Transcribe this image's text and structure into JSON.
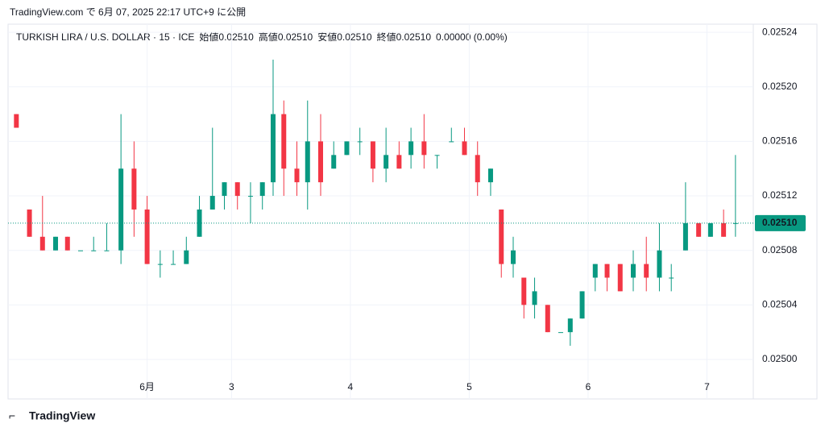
{
  "header": {
    "published": "TradingView.com で 6月 07, 2025 22:17 UTC+9 に公開"
  },
  "legend": {
    "symbol": "TURKISH LIRA / U.S. DOLLAR · 15 · ICE",
    "ohlc": [
      {
        "label": "始値",
        "value": "0.02510"
      },
      {
        "label": "高値",
        "value": "0.02510"
      },
      {
        "label": "安値",
        "value": "0.02510"
      },
      {
        "label": "終値",
        "value": "0.02510"
      }
    ],
    "change": "0.00000 (0.00%)"
  },
  "footer": {
    "brand": "TradingView"
  },
  "chart_data": {
    "type": "candlestick",
    "up_color": "#089981",
    "down_color": "#f23645",
    "grid": true,
    "xlim": [
      1.12,
      7.39
    ],
    "ylim": [
      0.024971,
      0.025246
    ],
    "xticks": [
      {
        "value": 2.29,
        "label": "6月"
      },
      3,
      4,
      5,
      6,
      7
    ],
    "yticks": [
      {
        "value": 0.025,
        "label": "0.02500"
      },
      {
        "value": 0.02504,
        "label": "0.02504"
      },
      {
        "value": 0.02508,
        "label": "0.02508"
      },
      {
        "value": 0.02512,
        "label": "0.02512"
      },
      {
        "value": 0.02516,
        "label": "0.02516"
      },
      {
        "value": 0.0252,
        "label": "0.02520"
      },
      {
        "value": 0.02524,
        "label": "0.02524"
      }
    ],
    "last_price": {
      "value": 0.0251,
      "label": "0.02510"
    },
    "x": [
      1.19,
      1.3,
      1.41,
      1.52,
      1.62,
      1.73,
      1.84,
      1.95,
      2.07,
      2.18,
      2.29,
      2.4,
      2.51,
      2.62,
      2.73,
      2.84,
      2.94,
      3.05,
      3.16,
      3.26,
      3.35,
      3.44,
      3.55,
      3.64,
      3.75,
      3.86,
      3.97,
      4.08,
      4.19,
      4.3,
      4.41,
      4.51,
      4.62,
      4.73,
      4.85,
      4.96,
      5.07,
      5.18,
      5.27,
      5.37,
      5.46,
      5.55,
      5.66,
      5.77,
      5.85,
      5.95,
      6.06,
      6.16,
      6.27,
      6.38,
      6.49,
      6.6,
      6.7,
      6.82,
      6.93,
      7.03,
      7.14,
      7.24
    ],
    "open": [
      0.02518,
      0.02511,
      0.02509,
      0.02508,
      0.02509,
      0.02508,
      0.02508,
      0.02508,
      0.02508,
      0.02514,
      0.02511,
      0.02507,
      0.02507,
      0.02507,
      0.02509,
      0.02511,
      0.02512,
      0.02513,
      0.02512,
      0.02512,
      0.02513,
      0.02518,
      0.02514,
      0.02513,
      0.02516,
      0.02514,
      0.02515,
      0.02516,
      0.02516,
      0.02514,
      0.02515,
      0.02515,
      0.02516,
      0.02515,
      0.02516,
      0.02516,
      0.02515,
      0.02513,
      0.02511,
      0.02507,
      0.02506,
      0.02504,
      0.02504,
      0.02502,
      0.02502,
      0.02503,
      0.02506,
      0.02507,
      0.02507,
      0.02506,
      0.02507,
      0.02506,
      0.02506,
      0.02508,
      0.0251,
      0.02509,
      0.0251,
      0.0251
    ],
    "high": [
      0.02518,
      0.02511,
      0.02512,
      0.02509,
      0.02509,
      0.02508,
      0.02509,
      0.0251,
      0.02518,
      0.02516,
      0.02512,
      0.02508,
      0.02508,
      0.02509,
      0.02512,
      0.02517,
      0.02513,
      0.02513,
      0.02513,
      0.02513,
      0.02522,
      0.02519,
      0.02516,
      0.02519,
      0.02518,
      0.02516,
      0.02516,
      0.02517,
      0.02516,
      0.02517,
      0.02516,
      0.02517,
      0.02518,
      0.02515,
      0.02517,
      0.02517,
      0.02516,
      0.02514,
      0.02511,
      0.02509,
      0.02506,
      0.02506,
      0.02504,
      0.02502,
      0.02503,
      0.02505,
      0.02507,
      0.02507,
      0.02507,
      0.02508,
      0.02509,
      0.0251,
      0.02507,
      0.02513,
      0.0251,
      0.0251,
      0.02511,
      0.02515
    ],
    "low": [
      0.02517,
      0.02509,
      0.02508,
      0.02508,
      0.02508,
      0.02508,
      0.02508,
      0.02508,
      0.02507,
      0.02509,
      0.02507,
      0.02506,
      0.02507,
      0.02507,
      0.02509,
      0.02511,
      0.02511,
      0.02511,
      0.0251,
      0.02511,
      0.02512,
      0.02512,
      0.02512,
      0.02511,
      0.02512,
      0.02514,
      0.02515,
      0.02515,
      0.02513,
      0.02513,
      0.02514,
      0.02514,
      0.02514,
      0.02514,
      0.02516,
      0.02515,
      0.02512,
      0.02512,
      0.02506,
      0.02506,
      0.02503,
      0.02503,
      0.02502,
      0.02502,
      0.02501,
      0.02503,
      0.02505,
      0.02505,
      0.02505,
      0.02505,
      0.02505,
      0.02505,
      0.02505,
      0.02508,
      0.02509,
      0.02509,
      0.02509,
      0.02509
    ],
    "close": [
      0.02517,
      0.02509,
      0.02508,
      0.02509,
      0.02508,
      0.02508,
      0.02508,
      0.02508,
      0.02514,
      0.02511,
      0.02507,
      0.02507,
      0.02507,
      0.02508,
      0.02511,
      0.02512,
      0.02513,
      0.02512,
      0.02512,
      0.02513,
      0.02518,
      0.02514,
      0.02513,
      0.02516,
      0.02513,
      0.02515,
      0.02516,
      0.02516,
      0.02514,
      0.02515,
      0.02514,
      0.02516,
      0.02515,
      0.02515,
      0.02516,
      0.02515,
      0.02513,
      0.02514,
      0.02507,
      0.02508,
      0.02504,
      0.02505,
      0.02502,
      0.02502,
      0.02503,
      0.02505,
      0.02507,
      0.02506,
      0.02505,
      0.02507,
      0.02506,
      0.02508,
      0.02506,
      0.0251,
      0.02509,
      0.0251,
      0.02509,
      0.0251
    ]
  }
}
